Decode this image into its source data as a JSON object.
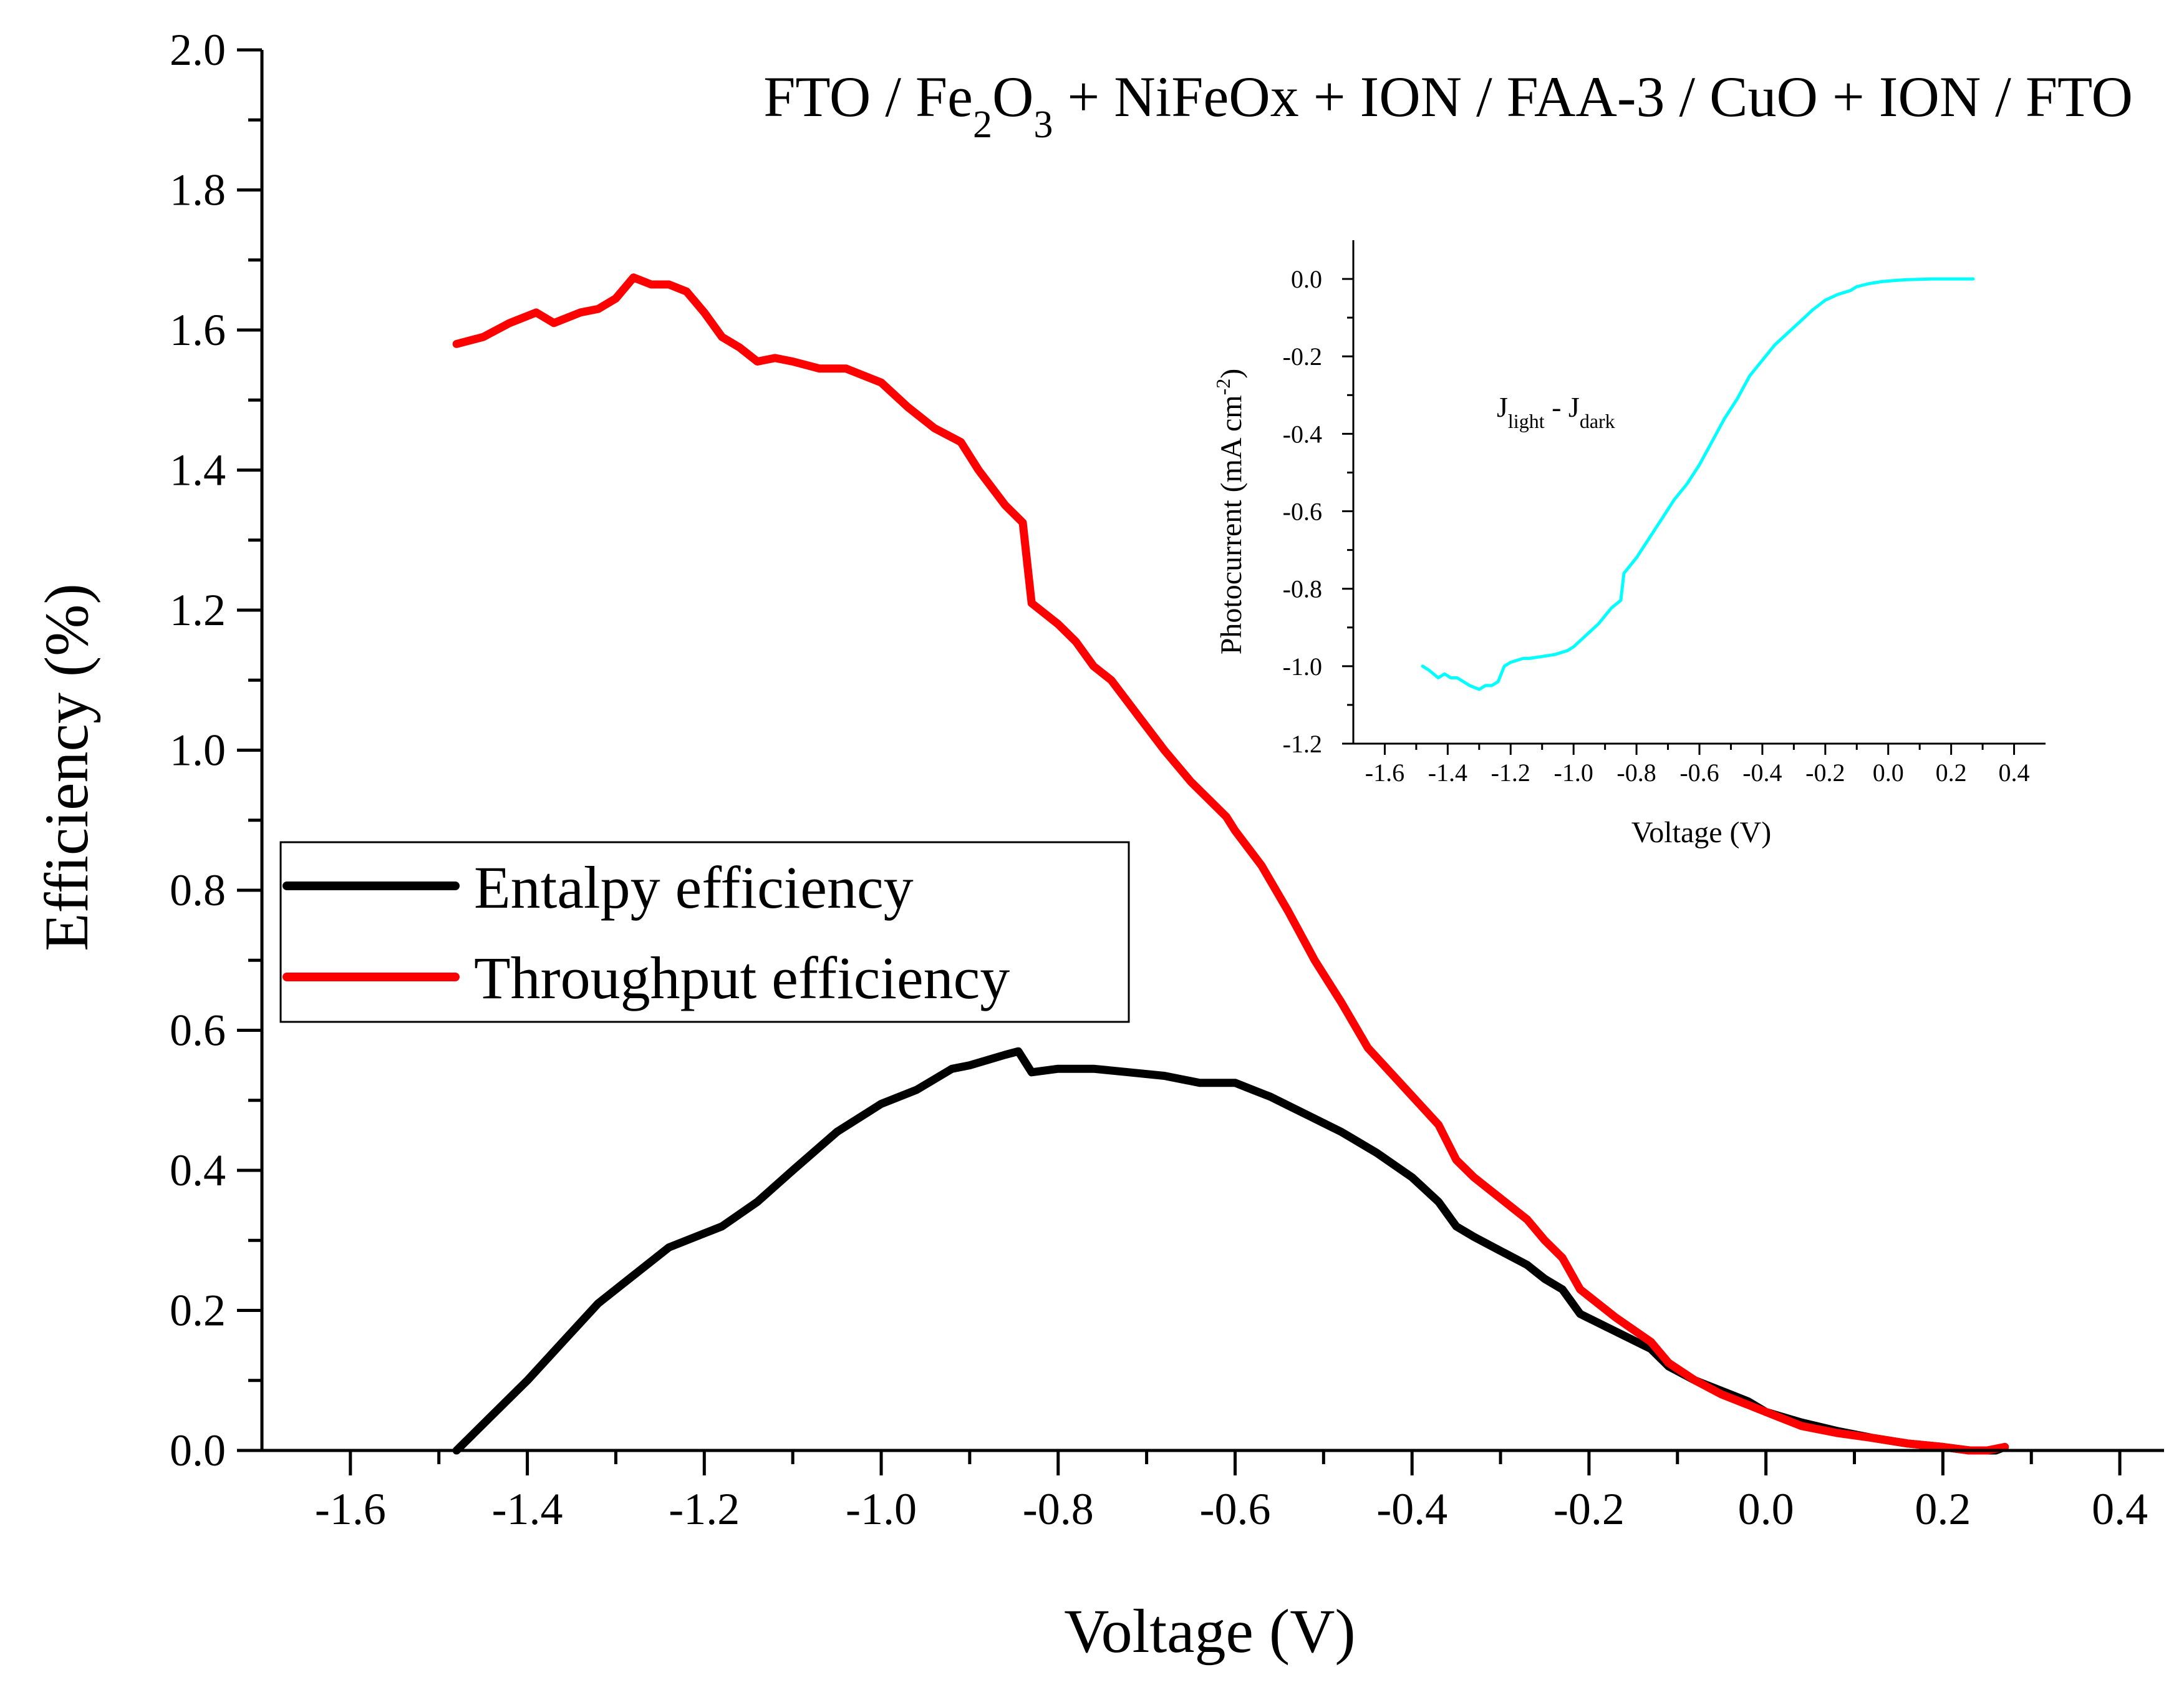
{
  "chart_data": [
    {
      "type": "line",
      "title_parts": [
        "FTO / Fe",
        "2",
        "O",
        "3",
        " + NiFeOx + ION / FAA-3 / CuO + ION / FTO"
      ],
      "title": "FTO / Fe2O3 + NiFeOx + ION / FAA-3 / CuO + ION / FTO",
      "xlabel": "Voltage (V)",
      "ylabel": "Efficiency (%)",
      "xlim": [
        -1.7,
        0.45
      ],
      "ylim": [
        0,
        2.0
      ],
      "xticks": [
        -1.6,
        -1.4,
        -1.2,
        -1.0,
        -0.8,
        -0.6,
        -0.4,
        -0.2,
        0.0,
        0.2,
        0.4
      ],
      "xtick_labels": [
        "-1.6",
        "-1.4",
        "-1.2",
        "-1.0",
        "-0.8",
        "-0.6",
        "-0.4",
        "-0.2",
        "0.0",
        "0.2",
        "0.4"
      ],
      "yticks": [
        0,
        0.2,
        0.4,
        0.6,
        0.8,
        1.0,
        1.2,
        1.4,
        1.6,
        1.8,
        2.0
      ],
      "ytick_labels": [
        "0.0",
        "0.2",
        "0.4",
        "0.6",
        "0.8",
        "1.0",
        "1.2",
        "1.4",
        "1.6",
        "1.8",
        "2.0"
      ],
      "legend_position": "center-left",
      "series": [
        {
          "name": "Entalpy efficiency",
          "color": "#000000",
          "x": [
            -1.48,
            -1.44,
            -1.4,
            -1.36,
            -1.32,
            -1.28,
            -1.24,
            -1.2,
            -1.18,
            -1.14,
            -1.1,
            -1.05,
            -1.0,
            -0.96,
            -0.92,
            -0.9,
            -0.86,
            -0.845,
            -0.83,
            -0.8,
            -0.76,
            -0.72,
            -0.68,
            -0.64,
            -0.6,
            -0.58,
            -0.56,
            -0.52,
            -0.48,
            -0.44,
            -0.4,
            -0.37,
            -0.35,
            -0.33,
            -0.3,
            -0.27,
            -0.25,
            -0.23,
            -0.21,
            -0.17,
            -0.13,
            -0.11,
            -0.08,
            -0.05,
            -0.02,
            0.0,
            0.04,
            0.08,
            0.12,
            0.16,
            0.2,
            0.23,
            0.26,
            0.27
          ],
          "y": [
            0.0,
            0.05,
            0.1,
            0.155,
            0.21,
            0.25,
            0.29,
            0.31,
            0.32,
            0.355,
            0.4,
            0.455,
            0.495,
            0.515,
            0.545,
            0.55,
            0.565,
            0.57,
            0.54,
            0.545,
            0.545,
            0.54,
            0.535,
            0.525,
            0.525,
            0.515,
            0.505,
            0.48,
            0.455,
            0.425,
            0.39,
            0.355,
            0.32,
            0.305,
            0.285,
            0.265,
            0.245,
            0.23,
            0.195,
            0.17,
            0.145,
            0.12,
            0.1,
            0.085,
            0.07,
            0.055,
            0.04,
            0.028,
            0.018,
            0.01,
            0.005,
            0.0,
            0.0,
            0.005
          ]
        },
        {
          "name": "Throughput efficiency",
          "color": "#ff0000",
          "x": [
            -1.48,
            -1.45,
            -1.42,
            -1.39,
            -1.37,
            -1.34,
            -1.32,
            -1.3,
            -1.28,
            -1.26,
            -1.24,
            -1.22,
            -1.2,
            -1.18,
            -1.16,
            -1.14,
            -1.12,
            -1.1,
            -1.07,
            -1.04,
            -1.0,
            -0.97,
            -0.94,
            -0.91,
            -0.89,
            -0.86,
            -0.84,
            -0.83,
            -0.8,
            -0.78,
            -0.76,
            -0.74,
            -0.71,
            -0.68,
            -0.65,
            -0.61,
            -0.6,
            -0.57,
            -0.54,
            -0.51,
            -0.48,
            -0.45,
            -0.41,
            -0.37,
            -0.35,
            -0.33,
            -0.3,
            -0.27,
            -0.25,
            -0.23,
            -0.21,
            -0.17,
            -0.13,
            -0.11,
            -0.08,
            -0.05,
            -0.02,
            0.01,
            0.04,
            0.08,
            0.12,
            0.16,
            0.2,
            0.23,
            0.25,
            0.27
          ],
          "y": [
            1.58,
            1.59,
            1.61,
            1.625,
            1.61,
            1.625,
            1.63,
            1.645,
            1.675,
            1.665,
            1.665,
            1.655,
            1.625,
            1.59,
            1.575,
            1.555,
            1.56,
            1.555,
            1.545,
            1.545,
            1.525,
            1.49,
            1.46,
            1.44,
            1.4,
            1.35,
            1.325,
            1.21,
            1.18,
            1.155,
            1.12,
            1.1,
            1.05,
            1.0,
            0.955,
            0.905,
            0.885,
            0.835,
            0.77,
            0.7,
            0.64,
            0.575,
            0.52,
            0.465,
            0.415,
            0.39,
            0.36,
            0.33,
            0.3,
            0.275,
            0.23,
            0.19,
            0.155,
            0.125,
            0.1,
            0.08,
            0.065,
            0.05,
            0.035,
            0.025,
            0.018,
            0.01,
            0.005,
            0.0,
            0.0,
            0.005
          ]
        }
      ]
    },
    {
      "type": "line",
      "title": "",
      "annotation_parts": [
        "J",
        "light",
        " - J",
        "dark"
      ],
      "annotation": "Jlight - Jdark",
      "xlabel": "Voltage (V)",
      "ylabel_parts": [
        "Photocurrent (mA cm",
        "-2",
        ")"
      ],
      "ylabel": "Photocurrent (mA cm-2)",
      "xlim": [
        -1.7,
        0.5
      ],
      "ylim": [
        -1.2,
        0.1
      ],
      "xticks": [
        -1.6,
        -1.4,
        -1.2,
        -1.0,
        -0.8,
        -0.6,
        -0.4,
        -0.2,
        0.0,
        0.2,
        0.4
      ],
      "xtick_labels": [
        "-1.6",
        "-1.4",
        "-1.2",
        "-1.0",
        "-0.8",
        "-0.6",
        "-0.4",
        "-0.2",
        "0.0",
        "0.2",
        "0.4"
      ],
      "yticks": [
        0.0,
        -0.2,
        -0.4,
        -0.6,
        -0.8,
        -1.0,
        -1.2
      ],
      "ytick_labels": [
        "0.0",
        "-0.2",
        "-0.4",
        "-0.6",
        "-0.8",
        "-1.0",
        "-1.2"
      ],
      "series": [
        {
          "name": "Jlight - Jdark",
          "color": "#00ffff",
          "x": [
            -1.48,
            -1.46,
            -1.43,
            -1.41,
            -1.39,
            -1.37,
            -1.35,
            -1.33,
            -1.3,
            -1.28,
            -1.26,
            -1.24,
            -1.22,
            -1.2,
            -1.18,
            -1.16,
            -1.14,
            -1.1,
            -1.06,
            -1.02,
            -1.0,
            -0.96,
            -0.92,
            -0.88,
            -0.85,
            -0.84,
            -0.8,
            -0.76,
            -0.72,
            -0.68,
            -0.64,
            -0.6,
            -0.56,
            -0.52,
            -0.48,
            -0.44,
            -0.4,
            -0.36,
            -0.32,
            -0.28,
            -0.24,
            -0.2,
            -0.16,
            -0.12,
            -0.1,
            -0.06,
            -0.02,
            0.02,
            0.06,
            0.1,
            0.14,
            0.18,
            0.22,
            0.24,
            0.27
          ],
          "y": [
            -1.0,
            -1.01,
            -1.03,
            -1.02,
            -1.03,
            -1.03,
            -1.04,
            -1.05,
            -1.06,
            -1.05,
            -1.05,
            -1.04,
            -1.0,
            -0.99,
            -0.985,
            -0.98,
            -0.98,
            -0.975,
            -0.97,
            -0.96,
            -0.95,
            -0.92,
            -0.89,
            -0.85,
            -0.83,
            -0.76,
            -0.72,
            -0.67,
            -0.62,
            -0.57,
            -0.53,
            -0.48,
            -0.42,
            -0.36,
            -0.31,
            -0.25,
            -0.21,
            -0.17,
            -0.14,
            -0.11,
            -0.08,
            -0.055,
            -0.04,
            -0.03,
            -0.02,
            -0.012,
            -0.007,
            -0.004,
            -0.002,
            -0.001,
            0.0,
            0.0,
            0.0,
            0.0,
            0.0
          ]
        }
      ]
    }
  ]
}
